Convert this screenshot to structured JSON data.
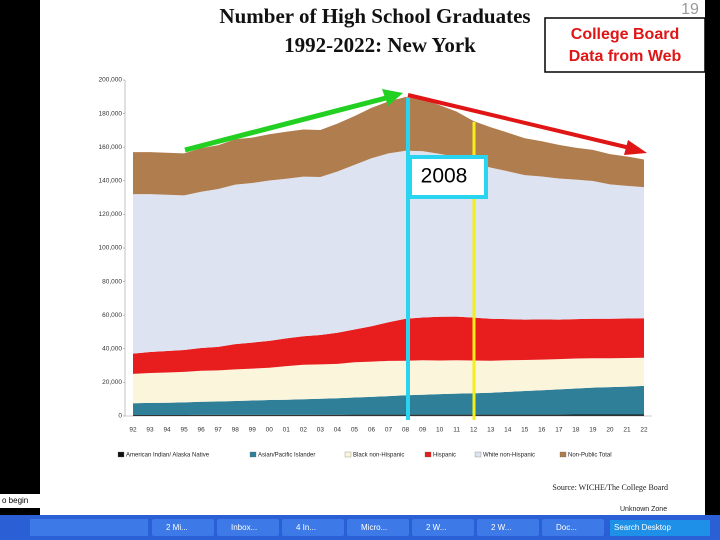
{
  "chart_data": {
    "type": "area",
    "stacked": true,
    "title": "Number of High School Graduates",
    "subtitle": "1992-2022:  New York",
    "source": "Source: WICHE/The College Board",
    "categories": [
      "92",
      "93",
      "94",
      "95",
      "96",
      "97",
      "98",
      "99",
      "00",
      "01",
      "02",
      "03",
      "04",
      "05",
      "06",
      "07",
      "08",
      "09",
      "10",
      "11",
      "12",
      "13",
      "14",
      "15",
      "16",
      "17",
      "18",
      "19",
      "20",
      "21",
      "22"
    ],
    "ylim": [
      0,
      200000
    ],
    "yticks": [
      0,
      {
        "value": 20000,
        "label": "20,000"
      },
      {
        "value": 40000,
        "label": "40,000"
      },
      {
        "value": 60000,
        "label": "60,000"
      },
      {
        "value": 80000,
        "label": "80,000"
      },
      {
        "value": 100000,
        "label": "100,000"
      },
      {
        "value": 120000,
        "label": "120,000"
      },
      {
        "value": 140000,
        "label": "140,000"
      },
      {
        "value": 160000,
        "label": "160,000"
      },
      {
        "value": 180000,
        "label": "180,000"
      },
      {
        "value": 200000,
        "label": "200,000"
      }
    ],
    "series": [
      {
        "name": "American Indian/ Alaska Native",
        "color": "#111111",
        "values": [
          600,
          600,
          600,
          600,
          650,
          650,
          650,
          700,
          700,
          700,
          700,
          750,
          750,
          800,
          800,
          800,
          850,
          850,
          850,
          850,
          850,
          850,
          850,
          850,
          850,
          850,
          900,
          900,
          900,
          900,
          900
        ]
      },
      {
        "name": "Asian/Pacific Islander",
        "color": "#2f7f99",
        "values": [
          7000,
          7200,
          7300,
          7500,
          7800,
          8000,
          8300,
          8500,
          8800,
          9000,
          9300,
          9500,
          9800,
          10200,
          10600,
          11000,
          11500,
          11800,
          12200,
          12500,
          12700,
          13000,
          13500,
          14000,
          14500,
          15000,
          15500,
          16000,
          16300,
          16600,
          17000
        ]
      },
      {
        "name": "Black non-Hispanic",
        "color": "#fbf5dc",
        "values": [
          17500,
          17800,
          18000,
          18200,
          18500,
          18500,
          18800,
          19000,
          19200,
          20000,
          20500,
          20500,
          20500,
          21000,
          21000,
          21000,
          20500,
          20500,
          20000,
          19800,
          19500,
          19000,
          18800,
          18500,
          18200,
          18000,
          17800,
          17500,
          17200,
          17000,
          16800
        ]
      },
      {
        "name": "Hispanic",
        "color": "#e81d1d",
        "values": [
          12000,
          12500,
          12800,
          13000,
          13500,
          14000,
          15000,
          15500,
          16000,
          16500,
          17000,
          17500,
          18500,
          19500,
          21000,
          23000,
          25000,
          25500,
          26000,
          26000,
          25500,
          25000,
          24500,
          24000,
          24000,
          23500,
          23500,
          23500,
          23500,
          23500,
          23500
        ]
      },
      {
        "name": "White non-Hispanic",
        "color": "#dde3f0",
        "values": [
          95000,
          94000,
          93000,
          92000,
          93000,
          94000,
          95000,
          95000,
          95500,
          95000,
          95000,
          94000,
          96000,
          98000,
          100000,
          100500,
          100000,
          99000,
          97000,
          95000,
          92000,
          90000,
          88000,
          86000,
          85000,
          84000,
          83000,
          82000,
          80000,
          79000,
          78000
        ]
      },
      {
        "name": "Non-Public Total",
        "color": "#b07d4f",
        "values": [
          25000,
          25000,
          25000,
          25000,
          26000,
          26000,
          27000,
          27000,
          27500,
          28000,
          28000,
          28000,
          28500,
          29000,
          30000,
          31000,
          32000,
          31000,
          29000,
          27000,
          25000,
          24000,
          23000,
          22000,
          21000,
          20000,
          19000,
          18500,
          18000,
          17500,
          16500
        ]
      }
    ]
  },
  "annotations": {
    "box_line1": "College Board",
    "box_line2": "Data from Web",
    "year_label": "2008",
    "slide_number": "19"
  },
  "taskbar": {
    "start": "o begin",
    "items": [
      "2 Mi...",
      "Inbox...",
      "4 In...",
      "Micro...",
      "2 W...",
      "2 W...",
      "Doc..."
    ],
    "search": "Search Desktop",
    "zone": "Unknown Zone"
  }
}
